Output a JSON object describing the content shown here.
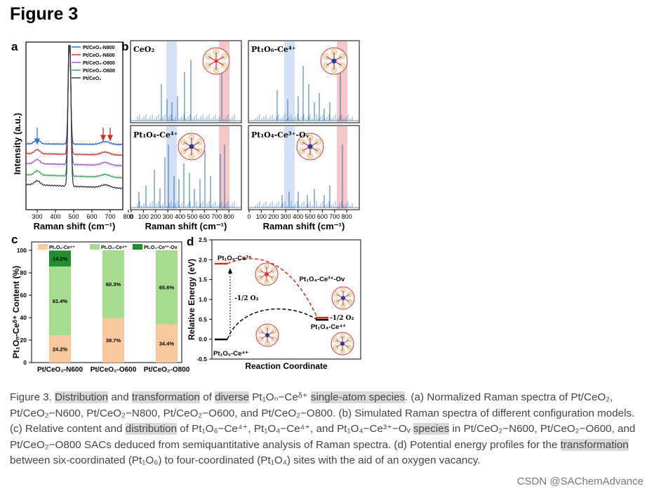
{
  "figure_title": "Figure 3",
  "panel_a": {
    "letter": "a",
    "ylabel": "Intensity (a.u.)",
    "xlabel": "Raman shift (cm⁻¹)",
    "xticks": [
      "300",
      "400",
      "500",
      "600",
      "700",
      "800"
    ],
    "legend": [
      "Pt/CeO₂-N800",
      "Pt/CeO₂-N600",
      "Pt/CeO₂-O800",
      "Pt/CeO₂-O600",
      "Pt/CeO₂"
    ],
    "colors": [
      "#1f5fd6",
      "#d42a22",
      "#9b4fd0",
      "#2e9e48",
      "#2f2f2f"
    ]
  },
  "panel_b": {
    "letter": "b",
    "titles": [
      "CeO₂",
      "Pt₁O₆-Ce⁴⁺",
      "Pt₁O₄-Ce⁴⁺",
      "Pt₁O₄-Ce³⁺-Oᵥ"
    ],
    "xticks": [
      "0",
      "100",
      "200",
      "300",
      "400",
      "500",
      "600",
      "700",
      "800"
    ],
    "xlabel": "Raman  shift (cm⁻¹)"
  },
  "panel_c": {
    "letter": "c",
    "ylabel": "Pt₁Oₙ-Ceᵟ⁺ Content (%)",
    "yticks": [
      "0",
      "20",
      "40",
      "60",
      "80",
      "100"
    ],
    "legend": [
      "Pt₁O₆-Ce⁴⁺",
      "Pt₁O₄-Ce⁴⁺",
      "Pt₁O₄-Ce³⁺-Ov"
    ],
    "colors": [
      "#f9c89d",
      "#a5dc8d",
      "#1f8f2d"
    ],
    "chart_data": {
      "type": "bar",
      "stacked": true,
      "categories": [
        "Pt/CeO₂-N600",
        "Pt/CeO₂-O600",
        "Pt/CeO₂-O800"
      ],
      "series": [
        {
          "name": "Pt₁O₆-Ce⁴⁺",
          "values": [
            24.2,
            39.7,
            34.4
          ],
          "labels": [
            "24.2%",
            "39.7%",
            "34.4%"
          ]
        },
        {
          "name": "Pt₁O₄-Ce⁴⁺",
          "values": [
            61.4,
            60.3,
            65.6
          ],
          "labels": [
            "61.4%",
            "60.3%",
            "65.6%"
          ]
        },
        {
          "name": "Pt₁O₄-Ce³⁺-Ov",
          "values": [
            14.2,
            0,
            0
          ],
          "labels": [
            "14.2%",
            "",
            ""
          ]
        }
      ],
      "ylim": [
        0,
        100
      ]
    }
  },
  "panel_d": {
    "letter": "d",
    "ylabel": "Relative Energy (eV)",
    "xlabel": "Reaction Coordinate",
    "yticks": [
      "-0.5",
      "0.0",
      "0.5",
      "1.0",
      "1.5",
      "2.0",
      "2.5"
    ],
    "labels": {
      "start": "Pt₁O₆-Ce⁴⁺",
      "top": "Pt₁O₆-Ce³⁺",
      "ov": "Pt₁O₄-Ce³⁺-Ov",
      "final": "Pt₁O₄-Ce⁴⁺",
      "o2_left": "-1/2 O₂",
      "o2_right": "-1/2 O₂"
    }
  },
  "caption": {
    "p1": "Figure 3. ",
    "p2": "Distribution",
    "p3": " and ",
    "p4": "transformation",
    "p5": " of ",
    "p6": "diverse",
    "p7": " Pt₁Oₙ−Ceᵟ⁺ ",
    "p8": "single-atom species",
    "p9": ". (a) Normalized Raman spectra of Pt/CeO₂, Pt/CeO₂−N600, Pt/CeO₂−N800, Pt/CeO₂−O600, and Pt/CeO₂−O800. (b) Simulated Raman spectra of different configuration models. (c) Relative content and ",
    "p10": "distribution",
    "p11": " of Pt₁O₆−Ce⁴⁺, Pt₁O₄−Ce⁴⁺, and Pt₁O₄−Ce³⁺−Oᵥ ",
    "p12": "species",
    "p13": " in Pt/CeO₂−N600, Pt/CeO₂−O600, and Pt/CeO₂−O800 SACs deduced from semiquantitative analysis of Raman spectra. (d) Potential energy profiles for the ",
    "p14": "transformation",
    "p15": " between six-coordinated (Pt₁O₆) to four-coordinated (Pt₁O₄) sites with the aid of an oxygen vacancy."
  },
  "watermark": "CSDN @SAChemAdvance"
}
